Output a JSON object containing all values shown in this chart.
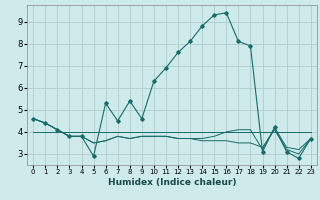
{
  "title": "",
  "xlabel": "Humidex (Indice chaleur)",
  "background_color": "#ceeaea",
  "grid_color": "#b0cccc",
  "line_color": "#1a6b6b",
  "x_values": [
    0,
    1,
    2,
    3,
    4,
    5,
    6,
    7,
    8,
    9,
    10,
    11,
    12,
    13,
    14,
    15,
    16,
    17,
    18,
    19,
    20,
    21,
    22,
    23
  ],
  "series1": [
    4.6,
    4.4,
    4.1,
    3.8,
    3.8,
    2.9,
    5.3,
    4.5,
    5.4,
    4.6,
    6.3,
    6.9,
    7.6,
    8.1,
    8.8,
    9.3,
    9.4,
    8.1,
    7.9,
    3.1,
    4.2,
    3.1,
    2.8,
    3.7
  ],
  "series2": [
    4.6,
    4.4,
    4.1,
    3.8,
    3.8,
    3.5,
    3.6,
    3.8,
    3.7,
    3.8,
    3.8,
    3.8,
    3.7,
    3.7,
    3.7,
    3.8,
    4.0,
    4.1,
    4.1,
    3.2,
    4.2,
    3.3,
    3.2,
    3.7
  ],
  "series3": [
    4.6,
    4.4,
    4.1,
    3.8,
    3.8,
    3.5,
    3.6,
    3.8,
    3.7,
    3.8,
    3.8,
    3.8,
    3.7,
    3.7,
    3.6,
    3.6,
    3.6,
    3.5,
    3.5,
    3.3,
    4.1,
    3.2,
    3.0,
    3.7
  ],
  "series4": [
    4.0,
    4.0,
    4.0,
    4.0,
    4.0,
    4.0,
    4.0,
    4.0,
    4.0,
    4.0,
    4.0,
    4.0,
    4.0,
    4.0,
    4.0,
    4.0,
    4.0,
    4.0,
    4.0,
    4.0,
    4.0,
    4.0,
    4.0,
    4.0
  ],
  "xlim": [
    -0.5,
    23.5
  ],
  "ylim": [
    2.5,
    9.75
  ],
  "yticks": [
    3,
    4,
    5,
    6,
    7,
    8,
    9
  ],
  "xticks": [
    0,
    1,
    2,
    3,
    4,
    5,
    6,
    7,
    8,
    9,
    10,
    11,
    12,
    13,
    14,
    15,
    16,
    17,
    18,
    19,
    20,
    21,
    22,
    23
  ]
}
